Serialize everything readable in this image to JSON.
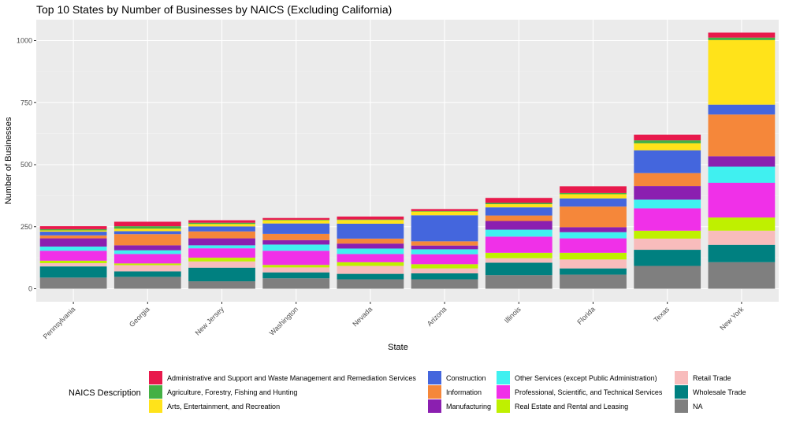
{
  "chart_data": {
    "type": "bar",
    "stacked": true,
    "title": "Top 10 States by Number of Businesses by NAICS (Excluding California)",
    "xlabel": "State",
    "ylabel": "Number of Businesses",
    "ylim": [
      0,
      1060
    ],
    "yticks": [
      0,
      250,
      500,
      750,
      1000
    ],
    "grid": true,
    "legend_position": "bottom",
    "legend_title": "NAICS Description",
    "categories": [
      "Pennsylvania",
      "Georgia",
      "New Jersey",
      "Washington",
      "Nevada",
      "Arizona",
      "Illinois",
      "Florida",
      "Texas",
      "New York"
    ],
    "series": [
      {
        "name": "NA",
        "color": "#7f7f7f",
        "values": [
          45,
          48,
          30,
          42,
          38,
          38,
          55,
          57,
          92,
          107
        ]
      },
      {
        "name": "Wholesale Trade",
        "color": "#008080",
        "values": [
          45,
          22,
          55,
          24,
          22,
          24,
          50,
          25,
          65,
          70
        ]
      },
      {
        "name": "Retail Trade",
        "color": "#f8bcbc",
        "values": [
          13,
          25,
          25,
          20,
          32,
          20,
          18,
          36,
          45,
          57
        ]
      },
      {
        "name": "Real Estate and Rental and Leasing",
        "color": "#bff000",
        "values": [
          10,
          7,
          15,
          10,
          15,
          17,
          22,
          27,
          32,
          53
        ]
      },
      {
        "name": "Professional, Scientific, and Technical Services",
        "color": "#f030e8",
        "values": [
          40,
          38,
          38,
          57,
          33,
          40,
          65,
          58,
          90,
          140
        ]
      },
      {
        "name": "Other Services (except Public Administration)",
        "color": "#40f0f0",
        "values": [
          17,
          15,
          12,
          25,
          22,
          20,
          28,
          25,
          35,
          65
        ]
      },
      {
        "name": "Manufacturing",
        "color": "#8b1fb0",
        "values": [
          33,
          20,
          28,
          18,
          20,
          15,
          35,
          20,
          55,
          42
        ]
      },
      {
        "name": "Information",
        "color": "#f5873a",
        "values": [
          12,
          45,
          28,
          25,
          20,
          17,
          22,
          83,
          52,
          168
        ]
      },
      {
        "name": "Construction",
        "color": "#4466dd",
        "values": [
          15,
          12,
          20,
          42,
          60,
          105,
          33,
          33,
          92,
          40
        ]
      },
      {
        "name": "Arts, Entertainment, and Recreation",
        "color": "#ffe31a",
        "values": [
          5,
          10,
          10,
          13,
          15,
          15,
          13,
          17,
          28,
          260
        ]
      },
      {
        "name": "Agriculture, Forestry, Fishing and Hunting",
        "color": "#44b044",
        "values": [
          5,
          10,
          5,
          2,
          2,
          2,
          5,
          5,
          12,
          10
        ]
      },
      {
        "name": "Administrative and Support and Waste Management and Remediation Services",
        "color": "#e8194c",
        "values": [
          12,
          18,
          10,
          7,
          12,
          8,
          20,
          27,
          23,
          20
        ]
      }
    ]
  },
  "legend_columns": [
    [
      "Administrative and Support and Waste Management and Remediation Services",
      "Agriculture, Forestry, Fishing and Hunting",
      "Arts, Entertainment, and Recreation"
    ],
    [
      "Construction",
      "Information",
      "Manufacturing"
    ],
    [
      "Other Services (except Public Administration)",
      "Professional, Scientific, and Technical Services",
      "Real Estate and Rental and Leasing"
    ],
    [
      "Retail Trade",
      "Wholesale Trade",
      "NA"
    ]
  ]
}
